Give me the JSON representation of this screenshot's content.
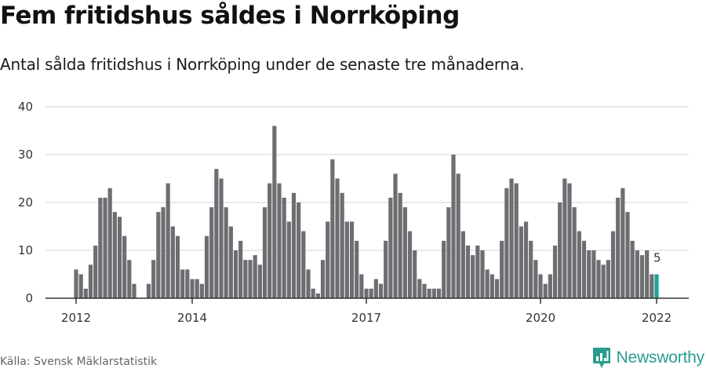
{
  "header": {
    "title": "Fem fritidshus såldes i Norrköping",
    "subtitle": "Antal sålda fritidshus i Norrköping under de senaste tre månaderna."
  },
  "footer": {
    "source": "Källa: Svensk Mäklarstatistik",
    "brand": "Newsworthy",
    "brand_icon": "bar-chart-speech-bubble-icon"
  },
  "colors": {
    "bar": "#6e6d72",
    "highlight": "#1aa39a",
    "grid": "#e2e2e2",
    "axis": "#333333",
    "brand": "#2a9d8f"
  },
  "chart_data": {
    "type": "bar",
    "title": "Fem fritidshus såldes i Norrköping",
    "subtitle": "Antal sålda fritidshus i Norrköping under de senaste tre månaderna.",
    "xlabel": "",
    "ylabel": "",
    "ylim": [
      0,
      40
    ],
    "yticks": [
      0,
      10,
      20,
      30,
      40
    ],
    "xticks": [
      "2012",
      "2014",
      "2017",
      "2020",
      "2022"
    ],
    "grid": true,
    "legend": null,
    "annotation": {
      "label": "5",
      "category": "2022-01"
    },
    "highlight_last": true,
    "start": "2012-01",
    "frequency": "monthly",
    "series": [
      {
        "name": "Antal sålda fritidshus",
        "by_year": {
          "2012": [
            6,
            5,
            2,
            7,
            11,
            21,
            21,
            23,
            18,
            17,
            13,
            8
          ],
          "2013": [
            3,
            0,
            0,
            3,
            8,
            18,
            19,
            24,
            15,
            13,
            6,
            6
          ],
          "2014": [
            4,
            4,
            3,
            13,
            19,
            27,
            25,
            19,
            15,
            10,
            12,
            8
          ],
          "2015": [
            8,
            9,
            7,
            19,
            24,
            36,
            24,
            21,
            16,
            22,
            20,
            14
          ],
          "2016": [
            6,
            2,
            1,
            8,
            16,
            29,
            25,
            22,
            16,
            16,
            12,
            5
          ],
          "2017": [
            2,
            2,
            4,
            3,
            12,
            21,
            26,
            22,
            19,
            14,
            10,
            4
          ],
          "2018": [
            3,
            2,
            2,
            2,
            12,
            19,
            30,
            26,
            14,
            11,
            9,
            11
          ],
          "2019": [
            10,
            6,
            5,
            4,
            12,
            23,
            25,
            24,
            15,
            16,
            12,
            8
          ],
          "2020": [
            5,
            3,
            5,
            11,
            20,
            25,
            24,
            19,
            14,
            12,
            10,
            10
          ],
          "2021": [
            8,
            7,
            8,
            14,
            21,
            23,
            18,
            12,
            10,
            9,
            10,
            5
          ],
          "2022": [
            5
          ]
        }
      }
    ]
  }
}
